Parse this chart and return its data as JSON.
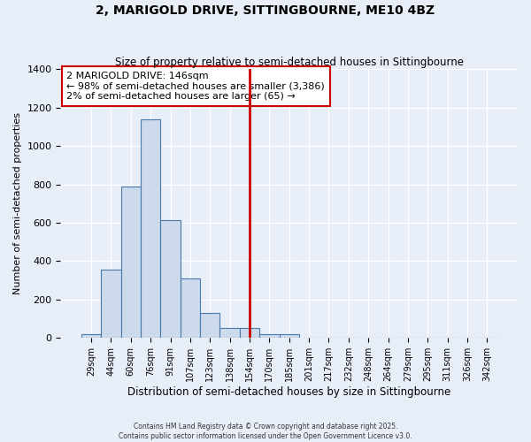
{
  "title": "2, MARIGOLD DRIVE, SITTINGBOURNE, ME10 4BZ",
  "subtitle": "Size of property relative to semi-detached houses in Sittingbourne",
  "xlabel": "Distribution of semi-detached houses by size in Sittingbourne",
  "ylabel": "Number of semi-detached properties",
  "footer_line1": "Contains HM Land Registry data © Crown copyright and database right 2025.",
  "footer_line2": "Contains public sector information licensed under the Open Government Licence v3.0.",
  "annotation_title": "2 MARIGOLD DRIVE: 146sqm",
  "annotation_line1": "← 98% of semi-detached houses are smaller (3,386)",
  "annotation_line2": "2% of semi-detached houses are larger (65) →",
  "bar_labels": [
    "29sqm",
    "44sqm",
    "60sqm",
    "76sqm",
    "91sqm",
    "107sqm",
    "123sqm",
    "138sqm",
    "154sqm",
    "170sqm",
    "185sqm",
    "201sqm",
    "217sqm",
    "232sqm",
    "248sqm",
    "264sqm",
    "279sqm",
    "295sqm",
    "311sqm",
    "326sqm",
    "342sqm"
  ],
  "bar_values": [
    20,
    354,
    790,
    1140,
    615,
    310,
    130,
    50,
    50,
    20,
    20,
    0,
    0,
    0,
    0,
    0,
    0,
    0,
    0,
    0,
    0
  ],
  "bar_color": "#ccdaec",
  "bar_edge_color": "#4a7aad",
  "vline_color": "#cc0000",
  "vline_index": 8.5,
  "background_color": "#e8eef8",
  "grid_color": "#ffffff",
  "ylim": [
    0,
    1400
  ],
  "yticks": [
    0,
    200,
    400,
    600,
    800,
    1000,
    1200,
    1400
  ]
}
